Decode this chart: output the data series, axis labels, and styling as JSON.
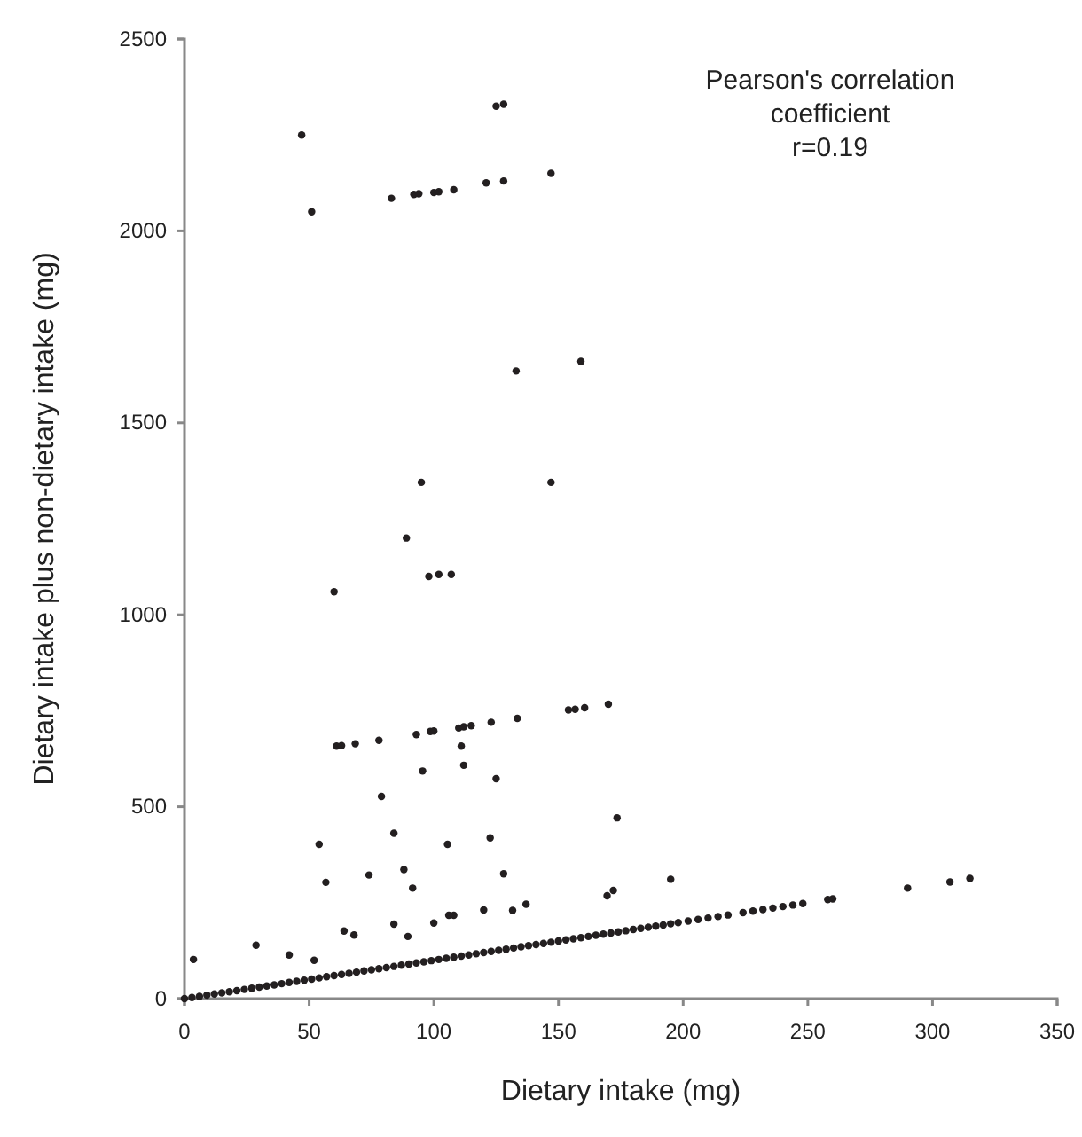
{
  "chart_data": {
    "type": "scatter",
    "xlabel": "Dietary intake (mg)",
    "ylabel": "Dietary intake plus non-dietary intake (mg)",
    "annotations": [
      "Pearson's correlation\ncoefficient\nr=0.19"
    ],
    "xlim": [
      0,
      350
    ],
    "xticks": [
      0,
      50,
      100,
      150,
      200,
      250,
      300,
      350
    ],
    "ylim": [
      0,
      2500
    ],
    "yticks": [
      0,
      500,
      1000,
      1500,
      2000,
      2500
    ],
    "grid": false,
    "marker": "circle",
    "series": [
      {
        "color": "#231f20",
        "x": [
          47,
          51,
          83,
          92,
          94,
          100,
          102,
          108,
          121,
          128,
          125,
          128,
          147,
          133,
          159,
          95,
          147,
          89,
          60,
          98,
          102,
          107,
          61,
          63,
          68.5,
          78,
          93,
          98.6,
          100,
          110,
          112,
          115,
          123,
          133.5,
          154,
          156.7,
          160.5,
          170,
          111,
          112,
          95.5,
          125,
          79,
          173.5,
          54,
          84,
          105.5,
          122.6,
          56.7,
          74,
          88,
          91.5,
          128,
          169.5,
          172,
          64,
          68,
          84,
          89.6,
          100,
          106,
          108,
          120,
          131.6,
          137,
          3.6,
          28.7,
          42,
          52,
          195,
          290,
          307,
          315
        ],
        "values": [
          2250,
          2050,
          2085,
          2095,
          2097,
          2100,
          2102,
          2107,
          2125,
          2130,
          2325,
          2330,
          2150,
          1635,
          1660,
          1345,
          1345,
          1200,
          1060,
          1100,
          1105,
          1105,
          658,
          659,
          664,
          673,
          688,
          696,
          697,
          705,
          708,
          711,
          720,
          730,
          752,
          754,
          758,
          767,
          658,
          608,
          593,
          573,
          527,
          471,
          402,
          431,
          402,
          419,
          303,
          322,
          336,
          288,
          325,
          268,
          282,
          176,
          166,
          194,
          162,
          197,
          217,
          217,
          231,
          230,
          246,
          102,
          139,
          114,
          100,
          311,
          288,
          304,
          313
        ]
      },
      {
        "color": "#231f20",
        "x": [
          0,
          3,
          6,
          9,
          12,
          15,
          18,
          21,
          24,
          27,
          30,
          33,
          36,
          39,
          42,
          45,
          48,
          51,
          54,
          57,
          60,
          63,
          66,
          69,
          72,
          75,
          78,
          81,
          84,
          87,
          90,
          93,
          96,
          99,
          102,
          105,
          108,
          111,
          114,
          117,
          120,
          123,
          126,
          129,
          132,
          135,
          138,
          141,
          144,
          147,
          150,
          153,
          156,
          159,
          162,
          165,
          168,
          171,
          174,
          177,
          180,
          183,
          186,
          189,
          192,
          195,
          198,
          202,
          206,
          210,
          214,
          218,
          224,
          228,
          232,
          236,
          240,
          244,
          248,
          258,
          260
        ],
        "values": [
          0,
          3,
          6,
          9,
          12,
          15,
          18,
          21,
          24,
          27,
          30,
          33,
          36,
          39,
          42,
          45,
          48,
          51,
          54,
          57,
          60,
          63,
          66,
          69,
          72,
          75,
          78,
          81,
          84,
          87,
          90,
          93,
          96,
          99,
          102,
          105,
          108,
          111,
          114,
          117,
          120,
          123,
          126,
          129,
          132,
          135,
          138,
          141,
          144,
          147,
          150,
          153,
          156,
          159,
          162,
          165,
          168,
          171,
          174,
          177,
          180,
          183,
          186,
          189,
          192,
          195,
          198,
          202,
          206,
          210,
          214,
          218,
          224,
          228,
          232,
          236,
          240,
          244,
          248,
          258,
          260
        ]
      }
    ]
  }
}
